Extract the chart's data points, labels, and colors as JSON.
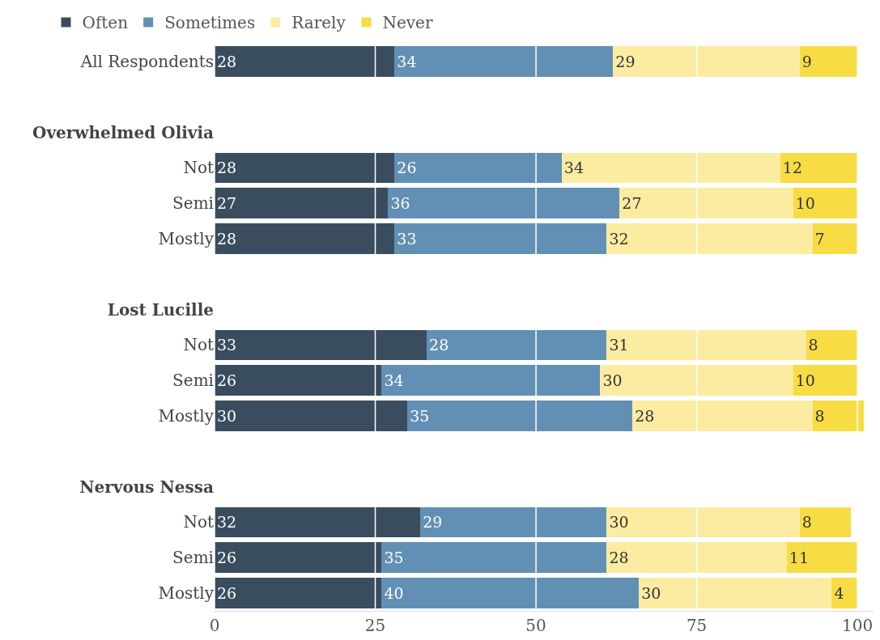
{
  "chart_data": {
    "type": "bar",
    "orientation": "horizontal",
    "stacked": true,
    "data_labels": true,
    "grid": "x",
    "legend": "top left",
    "categories": [
      "All Respondents",
      null,
      "Overwhelmed Olivia",
      "Not",
      "Semi",
      "Mostly",
      null,
      "Lost Lucille",
      "Not",
      "Semi",
      "Mostly",
      null,
      "Nervous Nessa",
      "Not",
      "Semi",
      "Mostly"
    ],
    "xlim": [
      0,
      102.5
    ],
    "xticks": [
      0,
      25,
      50,
      75,
      100
    ],
    "series": [
      {
        "name": "Often",
        "color": "#3a4d5e",
        "values": [
          28,
          null,
          null,
          28,
          27,
          28,
          null,
          null,
          33,
          26,
          30,
          null,
          null,
          32,
          26,
          26
        ]
      },
      {
        "name": "Sometimes",
        "color": "#6190b4",
        "values": [
          34,
          null,
          null,
          26,
          36,
          33,
          null,
          null,
          28,
          34,
          35,
          null,
          null,
          29,
          35,
          40
        ]
      },
      {
        "name": "Rarely",
        "color": "#fbeca2",
        "values": [
          29,
          null,
          null,
          34,
          27,
          32,
          null,
          null,
          31,
          30,
          28,
          null,
          null,
          30,
          28,
          30
        ]
      },
      {
        "name": "Never",
        "color": "#f8dc43",
        "values": [
          9,
          null,
          null,
          12,
          10,
          7,
          null,
          null,
          8,
          10,
          8,
          null,
          null,
          8,
          11,
          4
        ]
      }
    ]
  }
}
